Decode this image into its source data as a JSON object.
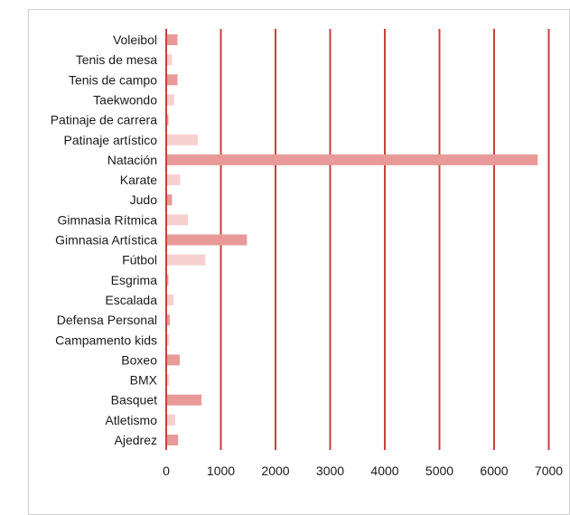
{
  "chart_data": {
    "type": "bar",
    "orientation": "horizontal",
    "categories": [
      "Voleibol",
      "Tenis de mesa",
      "Tenis de campo",
      "Taekwondo",
      "Patinaje de carrera",
      "Patinaje artístico",
      "Natación",
      "Karate",
      "Judo",
      "Gimnasia Rítmica",
      "Gimnasia Artística",
      "Fútbol",
      "Esgrima",
      "Escalada",
      "Defensa Personal",
      "Campamento kids",
      "Boxeo",
      "BMX",
      "Basquet",
      "Atletismo",
      "Ajedrez"
    ],
    "values": [
      190,
      90,
      190,
      130,
      20,
      560,
      6780,
      240,
      90,
      380,
      1460,
      700,
      10,
      120,
      50,
      40,
      230,
      40,
      630,
      150,
      200
    ],
    "title": "",
    "xlabel": "",
    "ylabel": "",
    "xlim": [
      0,
      7000
    ],
    "xticks": [
      "0",
      "1000",
      "2000",
      "3000",
      "4000",
      "5000",
      "6000",
      "7000"
    ],
    "grid": "vertical",
    "colors": {
      "bar_dark": "#e89a98",
      "bar_light": "#f6d0cf",
      "grid": "#c8403c",
      "text": "#1a1a1a"
    }
  }
}
